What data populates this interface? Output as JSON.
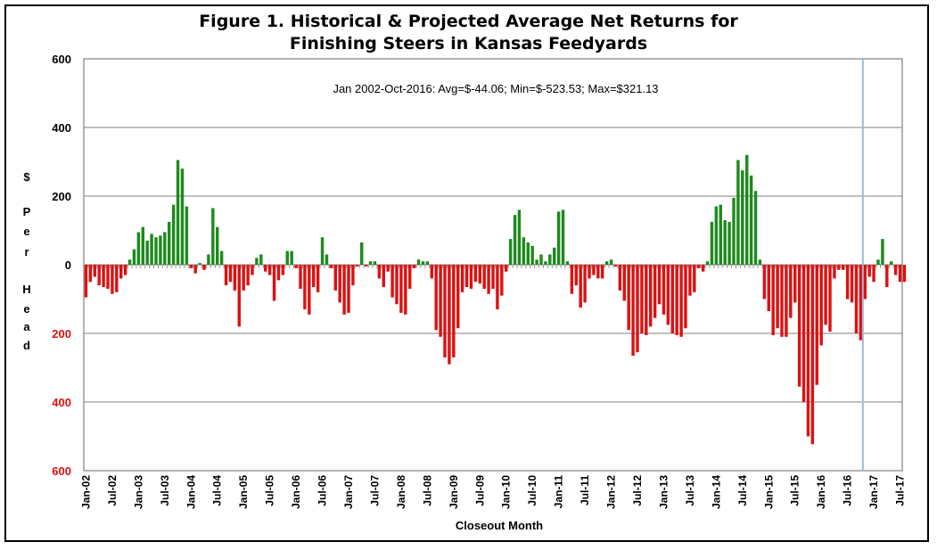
{
  "chart_data": {
    "type": "bar",
    "title": "Figure 1.  Historical & Projected Average Net Returns for",
    "title_line2": "Finishing Steers in Kansas Feedyards",
    "annotation": "Jan 2002-Oct-2016:  Avg=$-44.06; Min=$-523.53; Max=$321.13",
    "xlabel": "Closeout Month",
    "ylabel_letters": [
      "$",
      "P",
      "e",
      "r",
      "H",
      "e",
      "a",
      "d"
    ],
    "ylim": [
      -600,
      600
    ],
    "yticks": [
      600,
      400,
      200,
      0,
      200,
      400,
      600
    ],
    "ytick_values": [
      600,
      400,
      200,
      0,
      -200,
      -400,
      -600
    ],
    "x_tick_labels": [
      "Jan-02",
      "Jul-02",
      "Jan-03",
      "Jul-03",
      "Jan-04",
      "Jul-04",
      "Jan-05",
      "Jul-05",
      "Jan-06",
      "Jul-06",
      "Jan-07",
      "Jul-07",
      "Jan-08",
      "Jul-08",
      "Jan-09",
      "Jul-09",
      "Jan-10",
      "Jul-10",
      "Jan-11",
      "Jul-11",
      "Jan-12",
      "Jul-12",
      "Jan-13",
      "Jul-13",
      "Jan-14",
      "Jul-14",
      "Jan-15",
      "Jul-15",
      "Jan-16",
      "Jul-16",
      "Jan-17",
      "Jul-17"
    ],
    "start_month": "Jan-02",
    "projection_start": "Nov-16",
    "colors": {
      "positive": "#1e8a1e",
      "negative": "#dd1111",
      "projected_line": "#9bbad8",
      "grid": "#808080"
    },
    "values": [
      -95,
      -50,
      -35,
      -60,
      -65,
      -70,
      -85,
      -80,
      -40,
      -30,
      15,
      45,
      95,
      110,
      70,
      90,
      80,
      85,
      95,
      125,
      175,
      305,
      280,
      170,
      -10,
      -25,
      5,
      -15,
      30,
      165,
      110,
      40,
      -60,
      -50,
      -75,
      -180,
      -75,
      -60,
      -30,
      20,
      30,
      -20,
      -30,
      -105,
      -45,
      -30,
      40,
      40,
      -10,
      -70,
      -130,
      -145,
      -65,
      -80,
      80,
      30,
      -10,
      -75,
      -110,
      -145,
      -140,
      -60,
      -5,
      65,
      -5,
      10,
      10,
      -40,
      -65,
      -20,
      -95,
      -115,
      -140,
      -145,
      -70,
      -10,
      15,
      10,
      10,
      -40,
      -190,
      -210,
      -270,
      -290,
      -270,
      -185,
      -80,
      -65,
      -70,
      -50,
      -55,
      -70,
      -85,
      -70,
      -130,
      -90,
      -20,
      75,
      145,
      160,
      80,
      65,
      55,
      15,
      30,
      10,
      30,
      50,
      155,
      160,
      10,
      -85,
      -60,
      -125,
      -110,
      -40,
      -30,
      -40,
      -40,
      10,
      15,
      -5,
      -75,
      -105,
      -190,
      -265,
      -255,
      -200,
      -205,
      -180,
      -155,
      -115,
      -145,
      -175,
      -200,
      -205,
      -210,
      -185,
      -90,
      -80,
      -10,
      -20,
      10,
      125,
      170,
      175,
      130,
      125,
      195,
      305,
      275,
      320,
      260,
      215,
      15,
      -100,
      -135,
      -205,
      -185,
      -210,
      -210,
      -155,
      -110,
      -355,
      -400,
      -500,
      -523,
      -350,
      -235,
      -175,
      -195,
      -40,
      -15,
      -15,
      -100,
      -110,
      -200,
      -220,
      -100,
      -35,
      -50,
      15,
      75,
      -65,
      10,
      -30,
      -50,
      -50
    ]
  }
}
